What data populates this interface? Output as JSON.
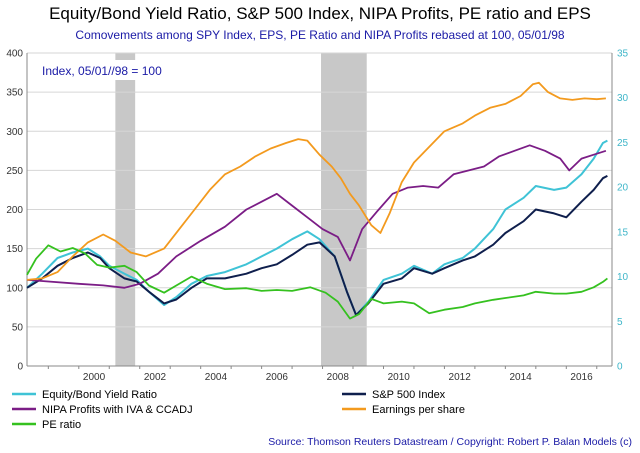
{
  "chart_data": {
    "type": "line",
    "title": "Equity/Bond Yield Ratio, S&P 500 Index, NIPA Profits, PE ratio and EPS",
    "subtitle": "Comovements among SPY Index, EPS, PE Ratio and NIPA Profits rebased at 100, 05/01/98",
    "annotation": "Index, 05/01//98 = 100",
    "source": "Source: Thomson Reuters Datastream / Copyright: Robert P. Balan Models (c)",
    "x_ticks": [
      "2000",
      "2002",
      "2004",
      "2006",
      "2008",
      "2010",
      "2012",
      "2014",
      "2016"
    ],
    "y_left": {
      "ticks": [
        "0",
        "50",
        "100",
        "150",
        "200",
        "250",
        "300",
        "350",
        "400"
      ],
      "range": [
        0,
        400
      ]
    },
    "y_right": {
      "ticks": [
        "0",
        "5",
        "10",
        "15",
        "20",
        "25",
        "30",
        "35"
      ],
      "range": [
        0,
        35
      ]
    },
    "x_range": [
      1998.3,
      2017.5
    ],
    "grid": "horizontal",
    "legend_position": "bottom",
    "recession_bands": [
      [
        2001.2,
        2001.85
      ],
      [
        2007.95,
        2009.45
      ]
    ],
    "series": [
      {
        "name": "Equity/Bond Yield Ratio",
        "axis": "left",
        "color": "#3fc3d6",
        "points": [
          [
            1998.3,
            100
          ],
          [
            1998.8,
            118
          ],
          [
            1999.3,
            138
          ],
          [
            1999.8,
            145
          ],
          [
            2000.3,
            150
          ],
          [
            2000.7,
            140
          ],
          [
            2001.0,
            128
          ],
          [
            2001.5,
            118
          ],
          [
            2001.9,
            110
          ],
          [
            2002.3,
            95
          ],
          [
            2002.8,
            78
          ],
          [
            2003.2,
            88
          ],
          [
            2003.7,
            105
          ],
          [
            2004.2,
            115
          ],
          [
            2004.8,
            120
          ],
          [
            2005.5,
            130
          ],
          [
            2006.0,
            140
          ],
          [
            2006.5,
            150
          ],
          [
            2007.0,
            162
          ],
          [
            2007.5,
            172
          ],
          [
            2007.9,
            162
          ],
          [
            2008.4,
            140
          ],
          [
            2008.8,
            95
          ],
          [
            2009.1,
            65
          ],
          [
            2009.5,
            82
          ],
          [
            2010.0,
            110
          ],
          [
            2010.6,
            118
          ],
          [
            2011.0,
            128
          ],
          [
            2011.6,
            118
          ],
          [
            2012.0,
            130
          ],
          [
            2012.6,
            138
          ],
          [
            2013.0,
            150
          ],
          [
            2013.6,
            175
          ],
          [
            2014.0,
            200
          ],
          [
            2014.6,
            215
          ],
          [
            2015.0,
            230
          ],
          [
            2015.6,
            225
          ],
          [
            2016.0,
            228
          ],
          [
            2016.5,
            245
          ],
          [
            2016.9,
            265
          ],
          [
            2017.2,
            285
          ],
          [
            2017.35,
            288
          ]
        ]
      },
      {
        "name": "S&P 500 Index",
        "axis": "left",
        "color": "#0f1f4d",
        "points": [
          [
            1998.3,
            100
          ],
          [
            1998.8,
            112
          ],
          [
            1999.3,
            128
          ],
          [
            1999.8,
            138
          ],
          [
            2000.3,
            145
          ],
          [
            2000.7,
            138
          ],
          [
            2001.0,
            125
          ],
          [
            2001.5,
            112
          ],
          [
            2001.9,
            108
          ],
          [
            2002.3,
            95
          ],
          [
            2002.8,
            80
          ],
          [
            2003.2,
            85
          ],
          [
            2003.7,
            100
          ],
          [
            2004.2,
            112
          ],
          [
            2004.8,
            112
          ],
          [
            2005.5,
            118
          ],
          [
            2006.0,
            125
          ],
          [
            2006.5,
            130
          ],
          [
            2007.0,
            142
          ],
          [
            2007.5,
            155
          ],
          [
            2007.9,
            158
          ],
          [
            2008.4,
            140
          ],
          [
            2008.8,
            95
          ],
          [
            2009.1,
            65
          ],
          [
            2009.5,
            80
          ],
          [
            2010.0,
            105
          ],
          [
            2010.6,
            112
          ],
          [
            2011.0,
            125
          ],
          [
            2011.6,
            118
          ],
          [
            2012.0,
            125
          ],
          [
            2012.6,
            135
          ],
          [
            2013.0,
            140
          ],
          [
            2013.6,
            155
          ],
          [
            2014.0,
            170
          ],
          [
            2014.6,
            185
          ],
          [
            2015.0,
            200
          ],
          [
            2015.6,
            195
          ],
          [
            2016.0,
            190
          ],
          [
            2016.5,
            210
          ],
          [
            2016.9,
            225
          ],
          [
            2017.2,
            240
          ],
          [
            2017.35,
            243
          ]
        ]
      },
      {
        "name": "NIPA Profits with IVA & CCADJ",
        "axis": "left",
        "color": "#7b1d86",
        "points": [
          [
            1998.3,
            110
          ],
          [
            1999.0,
            108
          ],
          [
            2000.0,
            105
          ],
          [
            2000.8,
            103
          ],
          [
            2001.5,
            100
          ],
          [
            2002.0,
            105
          ],
          [
            2002.6,
            118
          ],
          [
            2003.2,
            140
          ],
          [
            2004.0,
            160
          ],
          [
            2004.8,
            178
          ],
          [
            2005.5,
            200
          ],
          [
            2006.0,
            210
          ],
          [
            2006.5,
            220
          ],
          [
            2007.0,
            205
          ],
          [
            2007.5,
            190
          ],
          [
            2008.0,
            175
          ],
          [
            2008.5,
            165
          ],
          [
            2008.9,
            135
          ],
          [
            2009.3,
            175
          ],
          [
            2009.8,
            198
          ],
          [
            2010.3,
            220
          ],
          [
            2010.8,
            228
          ],
          [
            2011.3,
            230
          ],
          [
            2011.8,
            228
          ],
          [
            2012.3,
            245
          ],
          [
            2012.8,
            250
          ],
          [
            2013.3,
            255
          ],
          [
            2013.8,
            268
          ],
          [
            2014.3,
            275
          ],
          [
            2014.8,
            282
          ],
          [
            2015.3,
            275
          ],
          [
            2015.8,
            265
          ],
          [
            2016.1,
            250
          ],
          [
            2016.5,
            265
          ],
          [
            2016.9,
            270
          ],
          [
            2017.3,
            275
          ]
        ]
      },
      {
        "name": "Earnings per share",
        "axis": "left",
        "color": "#f39a1e",
        "points": [
          [
            1998.3,
            110
          ],
          [
            1998.8,
            112
          ],
          [
            1999.3,
            120
          ],
          [
            1999.8,
            140
          ],
          [
            2000.3,
            158
          ],
          [
            2000.8,
            168
          ],
          [
            2001.2,
            160
          ],
          [
            2001.7,
            145
          ],
          [
            2002.2,
            140
          ],
          [
            2002.8,
            150
          ],
          [
            2003.3,
            175
          ],
          [
            2003.8,
            200
          ],
          [
            2004.3,
            225
          ],
          [
            2004.8,
            245
          ],
          [
            2005.3,
            255
          ],
          [
            2005.8,
            268
          ],
          [
            2006.3,
            278
          ],
          [
            2006.8,
            285
          ],
          [
            2007.2,
            290
          ],
          [
            2007.5,
            288
          ],
          [
            2007.9,
            270
          ],
          [
            2008.3,
            255
          ],
          [
            2008.6,
            240
          ],
          [
            2008.9,
            220
          ],
          [
            2009.2,
            205
          ],
          [
            2009.6,
            180
          ],
          [
            2009.9,
            170
          ],
          [
            2010.2,
            195
          ],
          [
            2010.6,
            235
          ],
          [
            2011.0,
            260
          ],
          [
            2011.5,
            280
          ],
          [
            2012.0,
            300
          ],
          [
            2012.6,
            310
          ],
          [
            2013.0,
            320
          ],
          [
            2013.5,
            330
          ],
          [
            2014.0,
            335
          ],
          [
            2014.5,
            345
          ],
          [
            2014.9,
            360
          ],
          [
            2015.1,
            362
          ],
          [
            2015.4,
            350
          ],
          [
            2015.8,
            342
          ],
          [
            2016.2,
            340
          ],
          [
            2016.6,
            342
          ],
          [
            2017.0,
            341
          ],
          [
            2017.3,
            342
          ]
        ]
      },
      {
        "name": "PE ratio",
        "axis": "right",
        "color": "#35c11f",
        "points": [
          [
            1998.3,
            10.2
          ],
          [
            1998.6,
            12.0
          ],
          [
            1999.0,
            13.5
          ],
          [
            1999.4,
            12.8
          ],
          [
            1999.8,
            13.2
          ],
          [
            2000.2,
            12.6
          ],
          [
            2000.6,
            11.3
          ],
          [
            2001.0,
            11.0
          ],
          [
            2001.5,
            11.2
          ],
          [
            2001.9,
            10.5
          ],
          [
            2002.3,
            9.0
          ],
          [
            2002.8,
            8.2
          ],
          [
            2003.2,
            9.0
          ],
          [
            2003.7,
            10.0
          ],
          [
            2004.2,
            9.2
          ],
          [
            2004.8,
            8.6
          ],
          [
            2005.5,
            8.7
          ],
          [
            2006.0,
            8.4
          ],
          [
            2006.5,
            8.5
          ],
          [
            2007.0,
            8.4
          ],
          [
            2007.6,
            8.8
          ],
          [
            2008.1,
            8.2
          ],
          [
            2008.5,
            7.2
          ],
          [
            2008.9,
            5.3
          ],
          [
            2009.2,
            5.8
          ],
          [
            2009.6,
            7.5
          ],
          [
            2010.0,
            7.0
          ],
          [
            2010.6,
            7.2
          ],
          [
            2011.0,
            7.0
          ],
          [
            2011.5,
            5.9
          ],
          [
            2012.0,
            6.3
          ],
          [
            2012.6,
            6.6
          ],
          [
            2013.0,
            7.0
          ],
          [
            2013.6,
            7.4
          ],
          [
            2014.0,
            7.6
          ],
          [
            2014.6,
            7.9
          ],
          [
            2015.0,
            8.3
          ],
          [
            2015.6,
            8.1
          ],
          [
            2016.0,
            8.1
          ],
          [
            2016.5,
            8.3
          ],
          [
            2016.9,
            8.8
          ],
          [
            2017.2,
            9.4
          ],
          [
            2017.35,
            9.8
          ]
        ]
      }
    ]
  }
}
